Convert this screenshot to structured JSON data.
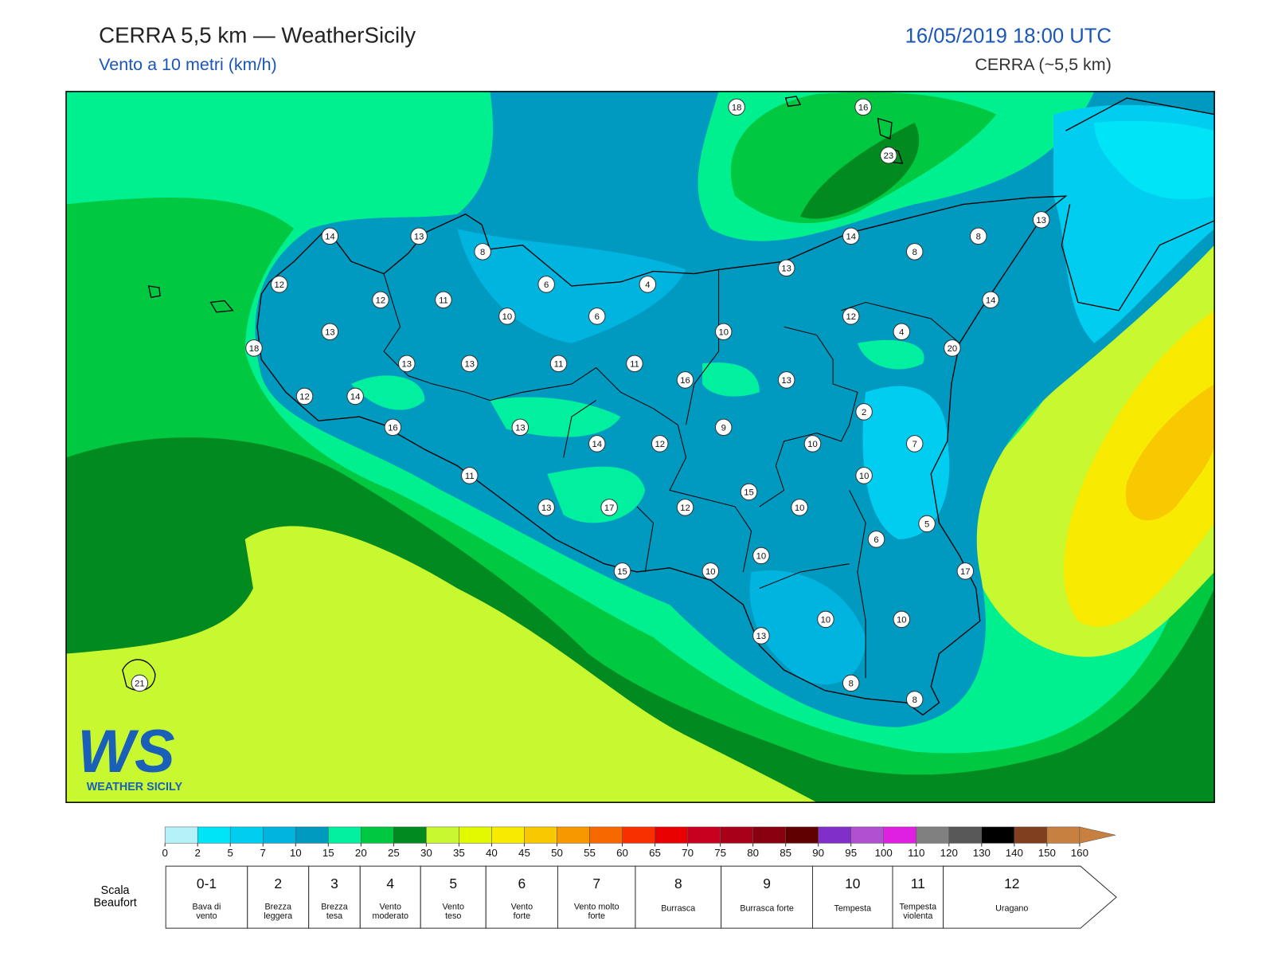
{
  "header": {
    "title": "CERRA 5,5 km — WeatherSicily",
    "subtitle": "Vento a 10 metri (km/h)",
    "datetime": "16/05/2019 18:00 UTC",
    "model": "CERRA (~5,5 km)"
  },
  "logo": {
    "mark": "WS",
    "name": "WEATHER SICILY"
  },
  "stations": [
    18,
    16,
    23,
    14,
    13,
    8,
    13,
    14,
    8,
    8,
    13,
    12,
    12,
    11,
    6,
    4,
    10,
    6,
    12,
    4,
    14,
    13,
    10,
    18,
    20,
    13,
    13,
    11,
    11,
    16,
    13,
    12,
    14,
    2,
    16,
    13,
    9,
    14,
    12,
    10,
    7,
    11,
    10,
    15,
    13,
    17,
    12,
    10,
    5,
    6,
    10,
    15,
    10,
    17,
    10,
    10,
    13,
    8,
    8,
    21
  ],
  "colorbar": {
    "ticks": [
      0,
      2,
      5,
      7,
      10,
      15,
      20,
      25,
      30,
      35,
      40,
      45,
      50,
      55,
      60,
      65,
      70,
      75,
      80,
      85,
      90,
      95,
      100,
      110,
      120,
      130,
      140,
      150,
      160
    ],
    "colors": [
      "#b4f2f8",
      "#00e4f8",
      "#00cdf0",
      "#00b4e0",
      "#0099c0",
      "#00f0a0",
      "#00c840",
      "#008a20",
      "#c8f830",
      "#e2f800",
      "#f8ea00",
      "#f8c800",
      "#f89800",
      "#f86800",
      "#f83000",
      "#e80000",
      "#c80020",
      "#a80018",
      "#880010",
      "#600000",
      "#8030c8",
      "#b050d0",
      "#e020e0",
      "#808080",
      "#585858",
      "#000000",
      "#804020",
      "#c88040"
    ]
  },
  "beaufort": {
    "title": "Scala Beaufort",
    "levels": [
      {
        "force": "0-1",
        "label": "Bava di vento"
      },
      {
        "force": "2",
        "label": "Brezza leggera"
      },
      {
        "force": "3",
        "label": "Brezza tesa"
      },
      {
        "force": "4",
        "label": "Vento moderato"
      },
      {
        "force": "5",
        "label": "Vento teso"
      },
      {
        "force": "6",
        "label": "Vento forte"
      },
      {
        "force": "7",
        "label": "Vento molto forte"
      },
      {
        "force": "8",
        "label": "Burrasca"
      },
      {
        "force": "9",
        "label": "Burrasca forte"
      },
      {
        "force": "10",
        "label": "Tempesta"
      },
      {
        "force": "11",
        "label": "Tempesta violenta"
      },
      {
        "force": "12",
        "label": "Uragano"
      }
    ]
  }
}
